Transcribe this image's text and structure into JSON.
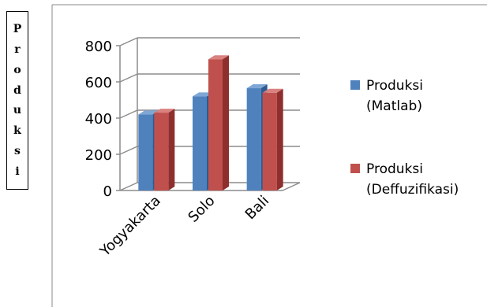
{
  "chart_data": {
    "type": "bar",
    "categories": [
      "Yogyakarta",
      "Solo",
      "Bali"
    ],
    "series": [
      {
        "name": "Produksi (Matlab)",
        "values": [
          420,
          520,
          565
        ],
        "color": "#4f81bd",
        "side_color": "#2e5a8f",
        "top_color": "#7fa7d6"
      },
      {
        "name": "Produksi (Deffuzifikasi)",
        "values": [
          430,
          725,
          540
        ],
        "color": "#c0504d",
        "side_color": "#8e2f2d",
        "top_color": "#d98280"
      }
    ],
    "yticks": [
      0,
      200,
      400,
      600,
      800
    ],
    "ylim": [
      0,
      800
    ],
    "ylabel": "Produksi",
    "ylabel_letters": [
      "P",
      "r",
      "o",
      "d",
      "u",
      "k",
      "s",
      "i"
    ],
    "legend": {
      "position": "right"
    },
    "grid": true
  }
}
